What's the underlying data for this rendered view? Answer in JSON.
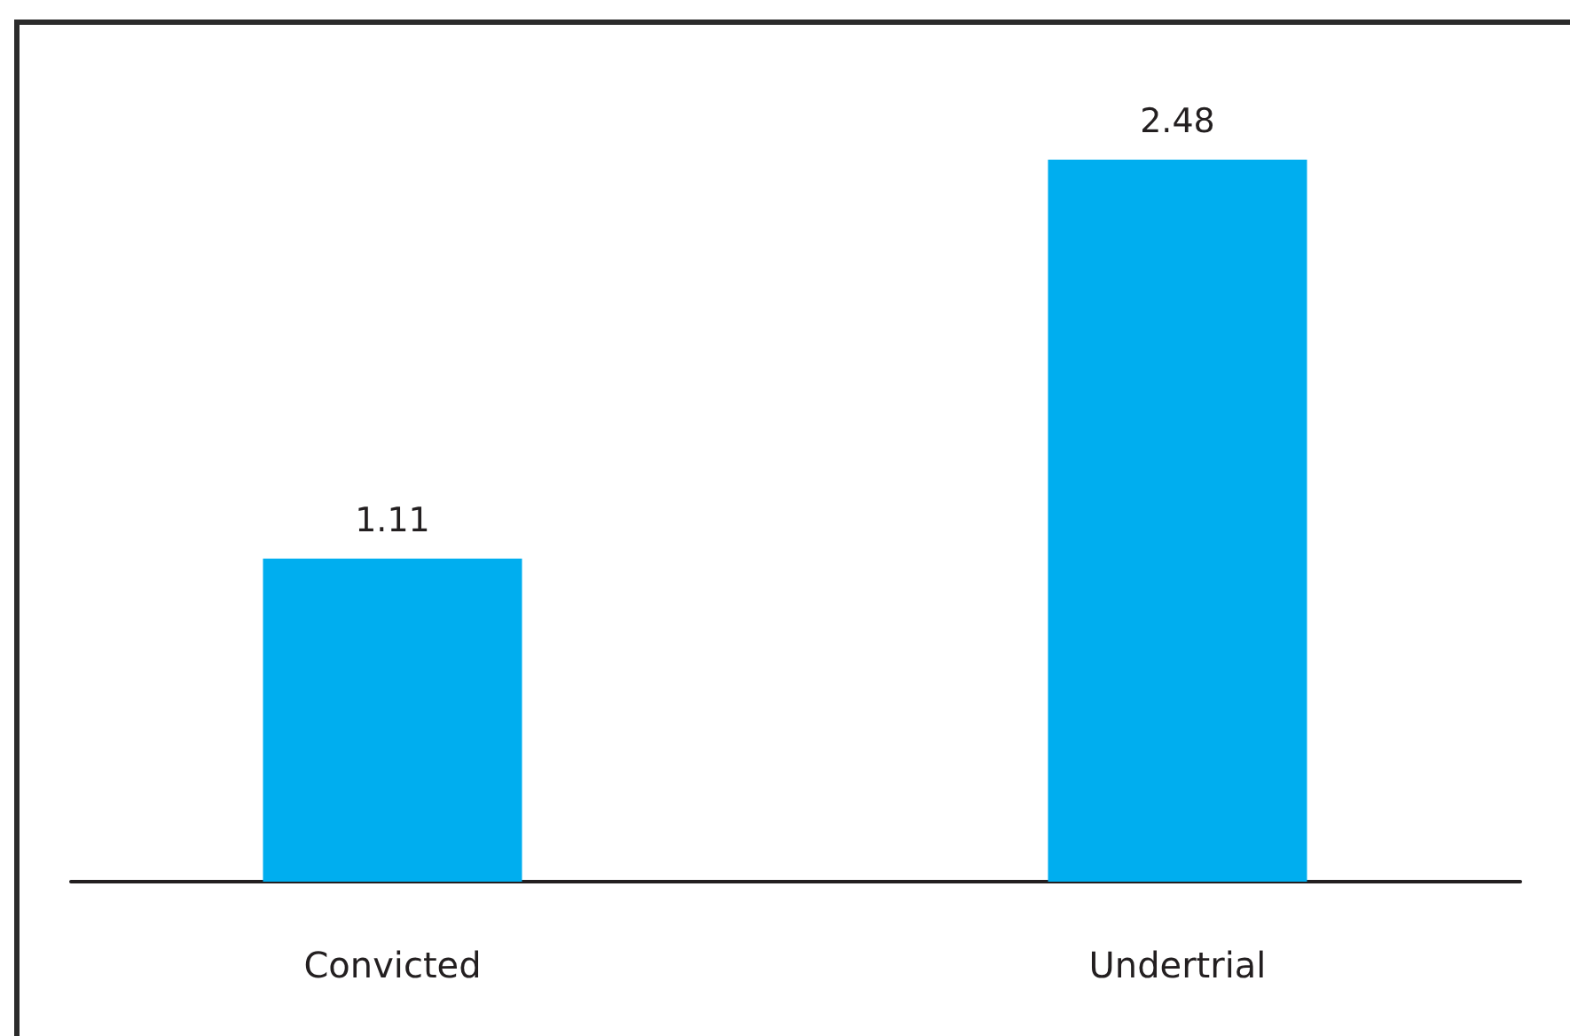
{
  "chart_data": {
    "type": "bar",
    "categories": [
      "Convicted",
      "Undertrial"
    ],
    "values": [
      1.11,
      2.48
    ],
    "color": "#00aeef",
    "data_labels": true
  }
}
